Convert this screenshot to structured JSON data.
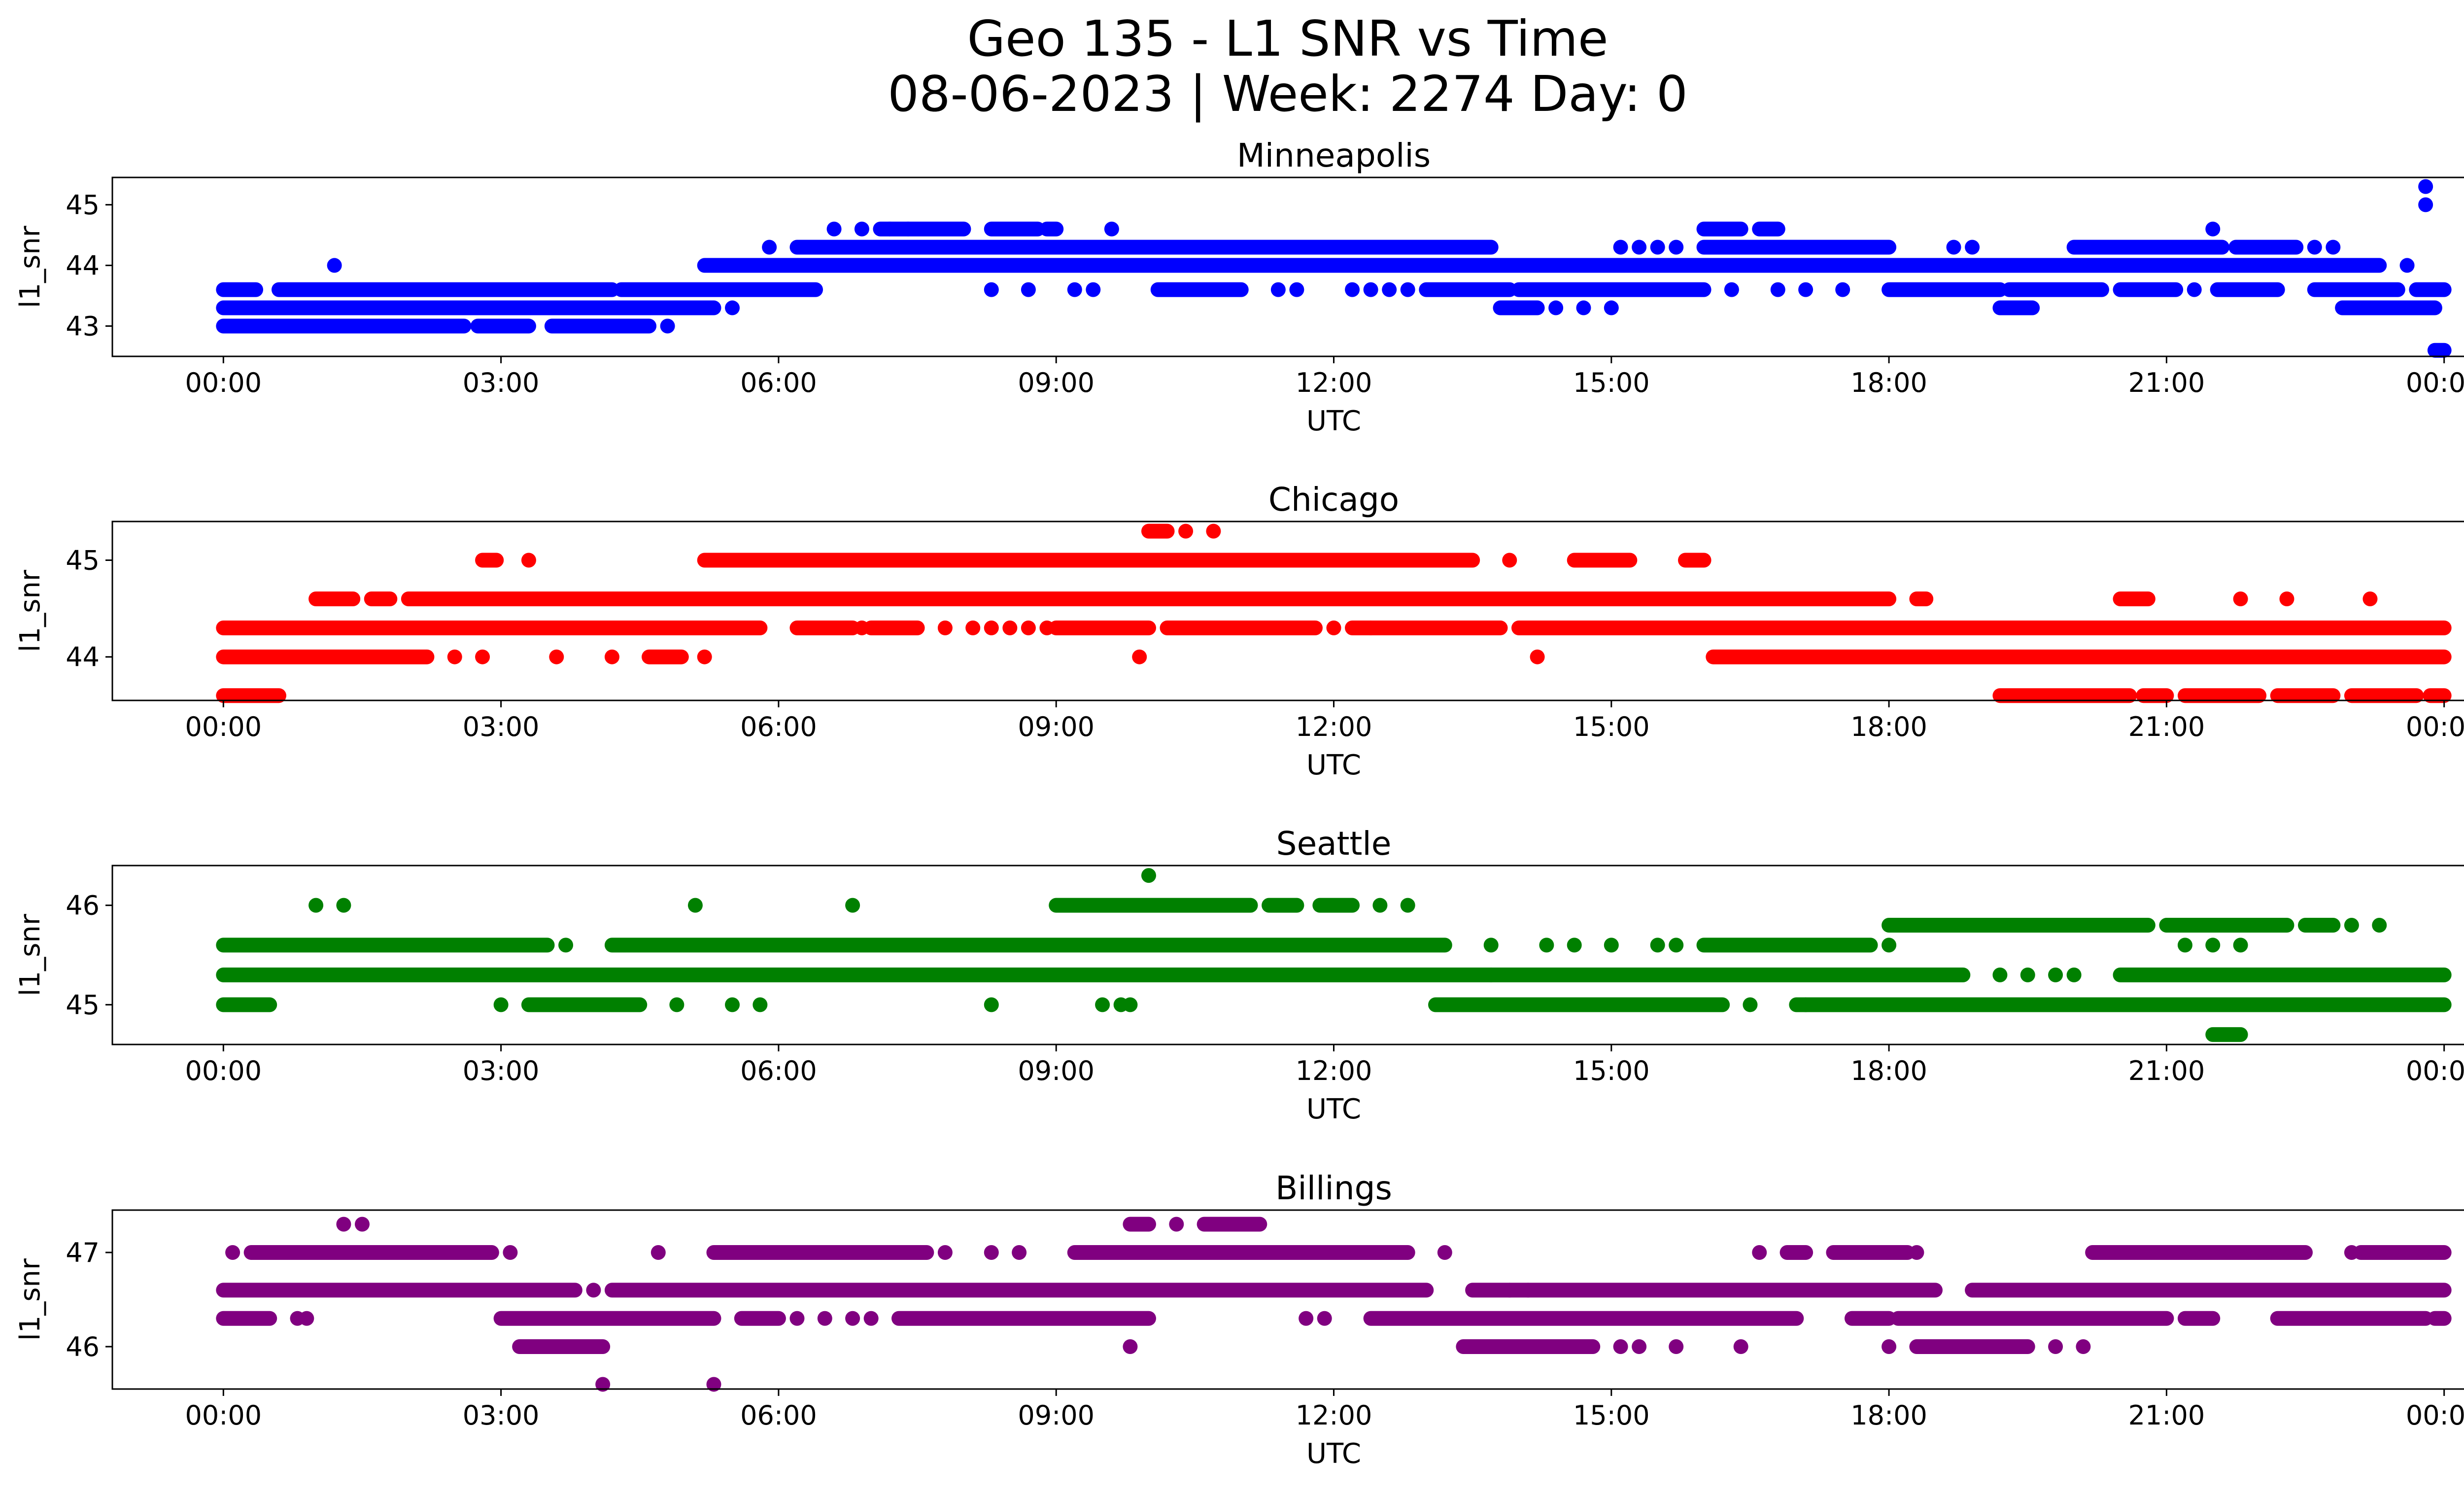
{
  "chart_data": {
    "type": "scatter",
    "title": "Geo 135 - L1 SNR vs Time",
    "subtitle": "08-06-2023 | Week: 2274 Day: 0",
    "x_ticks": [
      "00:00",
      "03:00",
      "06:00",
      "09:00",
      "12:00",
      "15:00",
      "18:00",
      "21:00",
      "00:00"
    ],
    "xlim_hours": [
      -1.2,
      25.2
    ],
    "xlabel": "UTC",
    "ylabel": "l1_snr",
    "panels": [
      {
        "name": "Minneapolis",
        "color": "#0000ff",
        "ylim": [
          42.5,
          45.45
        ],
        "yticks": [
          43,
          44,
          45
        ],
        "series": [
          {
            "value": 43.0,
            "segments": [
              [
                0.0,
                2.6
              ],
              [
                2.75,
                3.3
              ],
              [
                3.55,
                4.6
              ]
            ],
            "points": [
              4.8
            ]
          },
          {
            "value": 43.3,
            "segments": [
              [
                0.0,
                5.3
              ],
              [
                13.8,
                14.2
              ],
              [
                19.2,
                19.55
              ],
              [
                22.9,
                23.9
              ]
            ],
            "points": [
              5.5,
              14.4,
              14.7,
              15.0
            ]
          },
          {
            "value": 43.6,
            "segments": [
              [
                0.0,
                0.35
              ],
              [
                0.6,
                4.2
              ],
              [
                4.3,
                6.4
              ],
              [
                10.1,
                11.0
              ],
              [
                13.0,
                13.9
              ],
              [
                14.0,
                16.0
              ],
              [
                18.0,
                19.2
              ],
              [
                19.3,
                20.3
              ],
              [
                20.5,
                21.1
              ],
              [
                21.55,
                22.2
              ],
              [
                22.6,
                23.5
              ],
              [
                23.7,
                24.0
              ]
            ],
            "points": [
              8.3,
              8.7,
              9.2,
              9.4,
              11.4,
              11.6,
              12.2,
              12.4,
              12.6,
              12.8,
              16.3,
              16.8,
              17.1,
              17.5,
              21.3
            ]
          },
          {
            "value": 44.0,
            "segments": [
              [
                5.2,
                23.3
              ]
            ],
            "points": [
              1.2,
              23.6
            ]
          },
          {
            "value": 44.3,
            "segments": [
              [
                6.2,
                13.7
              ],
              [
                16.0,
                18.0
              ],
              [
                20.0,
                21.6
              ],
              [
                21.75,
                22.4
              ]
            ],
            "points": [
              5.9,
              15.1,
              15.3,
              15.5,
              15.7,
              18.7,
              18.9,
              22.6,
              22.8
            ]
          },
          {
            "value": 44.6,
            "segments": [
              [
                7.1,
                8.0
              ],
              [
                8.3,
                8.8
              ],
              [
                8.9,
                9.0
              ],
              [
                16.0,
                16.4
              ],
              [
                16.6,
                16.8
              ]
            ],
            "points": [
              6.6,
              6.9,
              7.2,
              7.4,
              9.6,
              21.5
            ]
          },
          {
            "value": 45.0,
            "segments": [],
            "points": [
              23.8
            ]
          },
          {
            "value": 45.3,
            "segments": [],
            "points": [
              23.8
            ]
          },
          {
            "value": 42.6,
            "segments": [
              [
                23.9,
                24.0
              ]
            ],
            "points": []
          }
        ]
      },
      {
        "name": "Chicago",
        "color": "#ff0000",
        "ylim": [
          43.55,
          45.4
        ],
        "yticks": [
          44,
          45
        ],
        "series": [
          {
            "value": 43.6,
            "segments": [
              [
                0.0,
                0.6
              ],
              [
                19.2,
                20.6
              ],
              [
                20.75,
                21.0
              ],
              [
                21.2,
                22.0
              ],
              [
                22.2,
                22.8
              ],
              [
                23.0,
                23.7
              ],
              [
                23.85,
                24.0
              ]
            ],
            "points": []
          },
          {
            "value": 44.0,
            "segments": [
              [
                0.0,
                2.2
              ],
              [
                4.6,
                4.95
              ],
              [
                16.1,
                24.0
              ]
            ],
            "points": [
              2.5,
              2.8,
              3.6,
              4.2,
              5.2,
              9.9,
              14.2
            ]
          },
          {
            "value": 44.3,
            "segments": [
              [
                0.0,
                5.8
              ],
              [
                6.2,
                6.8
              ],
              [
                7.0,
                7.5
              ],
              [
                9.0,
                10.0
              ],
              [
                10.2,
                11.8
              ],
              [
                12.2,
                13.8
              ],
              [
                14.0,
                24.0
              ]
            ],
            "points": [
              6.9,
              7.8,
              8.1,
              8.3,
              8.5,
              8.7,
              8.9,
              12.0,
              12.4
            ]
          },
          {
            "value": 44.6,
            "segments": [
              [
                1.0,
                1.4
              ],
              [
                1.6,
                1.8
              ],
              [
                2.0,
                18.0
              ],
              [
                18.3,
                18.4
              ],
              [
                20.5,
                20.8
              ]
            ],
            "points": [
              21.8,
              22.3,
              23.2
            ]
          },
          {
            "value": 45.0,
            "segments": [
              [
                2.8,
                2.95
              ],
              [
                5.2,
                13.5
              ],
              [
                14.6,
                15.2
              ],
              [
                15.8,
                16.0
              ]
            ],
            "points": [
              3.3,
              13.9
            ]
          },
          {
            "value": 45.3,
            "segments": [
              [
                10.0,
                10.2
              ]
            ],
            "points": [
              10.4,
              10.7
            ]
          }
        ]
      },
      {
        "name": "Seattle",
        "color": "#008000",
        "ylim": [
          44.6,
          46.4
        ],
        "yticks": [
          45,
          46
        ],
        "series": [
          {
            "value": 45.0,
            "segments": [
              [
                0.0,
                0.5
              ],
              [
                3.3,
                4.5
              ],
              [
                13.1,
                16.2
              ],
              [
                17.0,
                24.0
              ]
            ],
            "points": [
              3.0,
              4.9,
              5.5,
              5.8,
              8.3,
              9.5,
              9.7,
              9.8,
              16.5,
              17.1
            ]
          },
          {
            "value": 45.3,
            "segments": [
              [
                0.0,
                13.7
              ],
              [
                13.7,
                18.8
              ],
              [
                20.5,
                24.0
              ]
            ],
            "points": [
              19.2,
              19.5,
              19.8,
              20.0
            ]
          },
          {
            "value": 45.6,
            "segments": [
              [
                0.0,
                3.5
              ],
              [
                4.2,
                13.2
              ],
              [
                16.0,
                17.8
              ]
            ],
            "points": [
              3.7,
              13.7,
              14.3,
              14.6,
              15.0,
              15.5,
              15.7,
              18.0,
              21.2,
              21.5,
              21.8
            ]
          },
          {
            "value": 45.8,
            "segments": [
              [
                18.0,
                20.8
              ],
              [
                21.0,
                22.3
              ],
              [
                22.5,
                22.8
              ]
            ],
            "points": [
              23.0,
              23.3
            ]
          },
          {
            "value": 46.0,
            "segments": [
              [
                9.0,
                11.1
              ],
              [
                11.3,
                11.6
              ],
              [
                11.85,
                12.2
              ]
            ],
            "points": [
              1.0,
              1.3,
              5.1,
              6.8,
              12.5,
              12.8
            ]
          },
          {
            "value": 46.3,
            "segments": [],
            "points": [
              10.0
            ]
          },
          {
            "value": 44.7,
            "segments": [
              [
                21.5,
                21.8
              ]
            ],
            "points": []
          }
        ]
      },
      {
        "name": "Billings",
        "color": "#800080",
        "ylim": [
          45.55,
          47.45
        ],
        "yticks": [
          46,
          47
        ],
        "series": [
          {
            "value": 46.0,
            "segments": [
              [
                3.2,
                4.1
              ],
              [
                13.4,
                14.8
              ],
              [
                18.3,
                19.5
              ]
            ],
            "points": [
              15.1,
              15.3,
              15.7,
              16.4,
              18.0,
              19.8,
              20.1
            ]
          },
          {
            "value": 46.3,
            "segments": [
              [
                0.0,
                0.5
              ],
              [
                3.0,
                5.3
              ],
              [
                5.6,
                6.0
              ],
              [
                7.3,
                10.0
              ],
              [
                12.4,
                17.0
              ],
              [
                17.6,
                18.0
              ],
              [
                18.1,
                21.0
              ],
              [
                21.2,
                21.5
              ],
              [
                22.2,
                23.8
              ],
              [
                23.9,
                24.0
              ]
            ],
            "points": [
              0.8,
              0.9,
              6.2,
              6.5,
              6.8,
              7.0,
              11.7,
              11.9
            ]
          },
          {
            "value": 46.6,
            "segments": [
              [
                0.0,
                3.8
              ],
              [
                4.2,
                13.0
              ],
              [
                13.5,
                18.5
              ],
              [
                18.9,
                24.0
              ]
            ],
            "points": [
              4.0,
              13.9,
              14.1
            ]
          },
          {
            "value": 47.0,
            "segments": [
              [
                0.3,
                2.9
              ],
              [
                5.3,
                7.6
              ],
              [
                9.2,
                12.8
              ],
              [
                16.9,
                17.1
              ],
              [
                17.4,
                18.2
              ],
              [
                20.2,
                22.5
              ],
              [
                23.1,
                24.0
              ]
            ],
            "points": [
              0.1,
              3.1,
              4.7,
              7.8,
              8.3,
              8.6,
              13.2,
              16.6,
              18.3,
              23.0
            ]
          },
          {
            "value": 47.3,
            "segments": [
              [
                9.8,
                10.0
              ],
              [
                10.6,
                11.2
              ]
            ],
            "points": [
              1.3,
              1.5,
              10.3
            ]
          },
          {
            "value": 45.6,
            "segments": [],
            "points": [
              4.1,
              5.3
            ]
          },
          {
            "value": 46.0,
            "segments": [],
            "points": [
              9.8
            ]
          }
        ]
      }
    ]
  }
}
